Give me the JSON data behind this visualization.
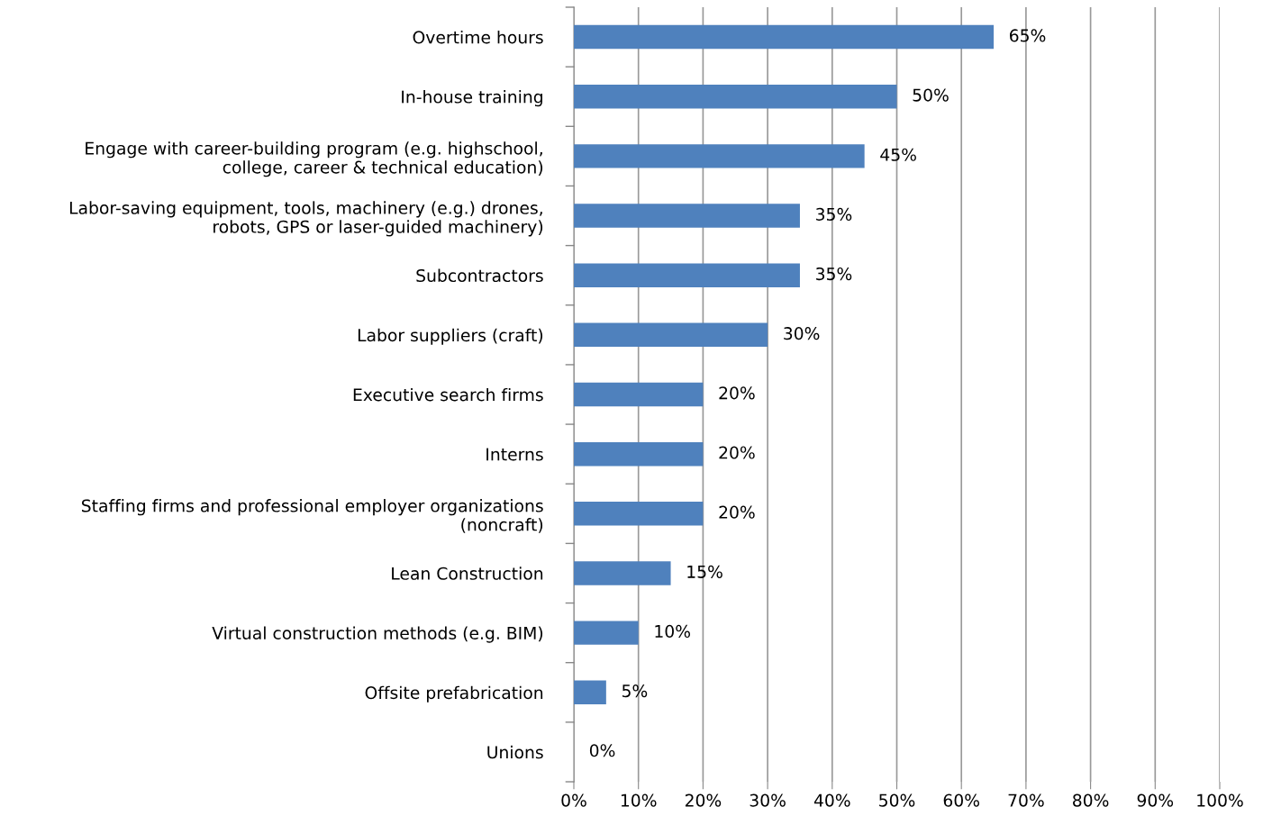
{
  "chart_data": {
    "type": "bar",
    "orientation": "horizontal",
    "categories": [
      "Overtime hours",
      "In-house training",
      "Engage with career-building program (e.g. highschool,\ncollege, career & technical education)",
      "Labor-saving equipment, tools, machinery (e.g.) drones,\nrobots, GPS or laser-guided machinery)",
      "Subcontractors",
      "Labor suppliers (craft)",
      "Executive search firms",
      "Interns",
      "Staffing firms and professional employer organizations\n(noncraft)",
      "Lean Construction",
      "Virtual construction methods (e.g. BIM)",
      "Offsite prefabrication",
      "Unions"
    ],
    "values": [
      65,
      50,
      45,
      35,
      35,
      30,
      20,
      20,
      20,
      15,
      10,
      5,
      0
    ],
    "value_labels": [
      "65%",
      "50%",
      "45%",
      "35%",
      "35%",
      "30%",
      "20%",
      "20%",
      "20%",
      "15%",
      "10%",
      "5%",
      "0%"
    ],
    "color": "#4f81bd",
    "xlim": [
      0,
      100
    ],
    "xticks": [
      {
        "value": 0,
        "label": "0%"
      },
      {
        "value": 10,
        "label": "10%"
      },
      {
        "value": 20,
        "label": "20%"
      },
      {
        "value": 30,
        "label": "30%"
      },
      {
        "value": 40,
        "label": "40%"
      },
      {
        "value": 50,
        "label": "50%"
      },
      {
        "value": 60,
        "label": "60%"
      },
      {
        "value": 70,
        "label": "70%"
      },
      {
        "value": 80,
        "label": "80%"
      },
      {
        "value": 90,
        "label": "90%"
      },
      {
        "value": 100,
        "label": "100%"
      }
    ],
    "grid": "x",
    "legend": false
  }
}
